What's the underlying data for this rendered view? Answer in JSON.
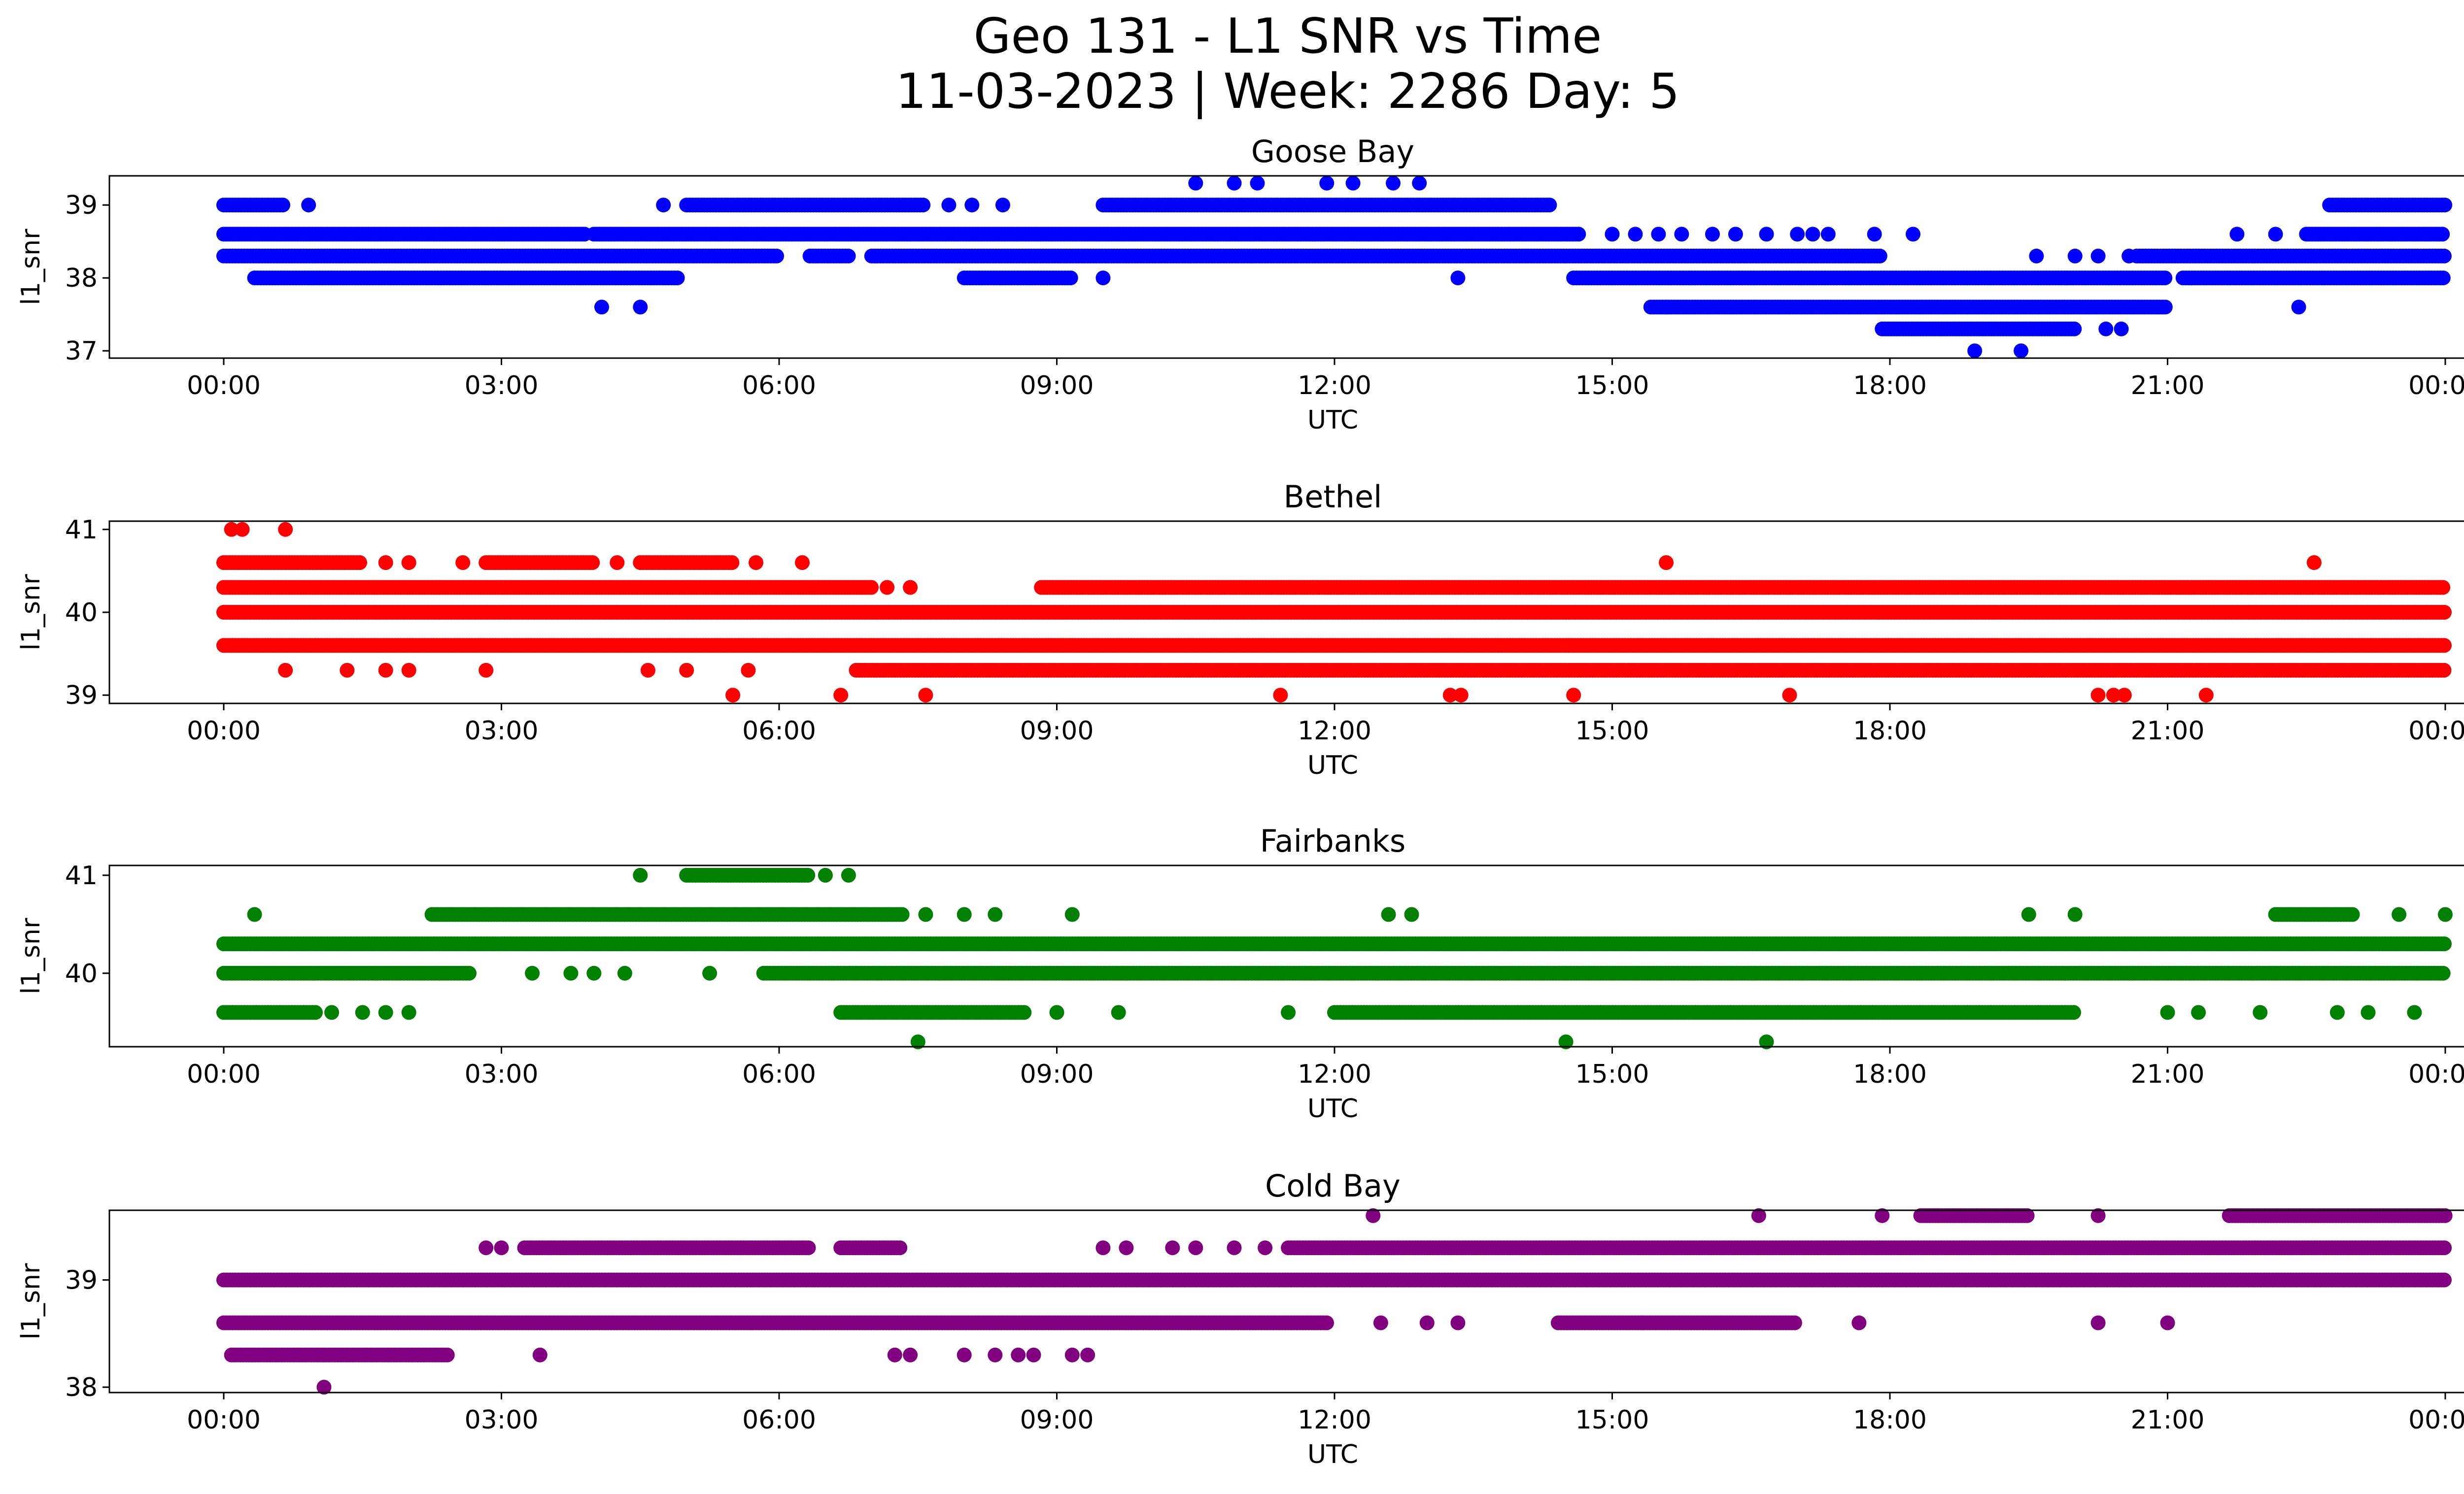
{
  "figure": {
    "title_line1": "Geo 131 - L1 SNR vs Time",
    "title_line2": "11-03-2023 | Week: 2286 Day: 5"
  },
  "chart_data": [
    {
      "type": "scatter",
      "title": "Goose Bay",
      "xlabel": "UTC",
      "ylabel": "l1_snr",
      "color": "#0000ff",
      "xlim": [
        "2023-11-03 00:00",
        "2023-11-04 00:00"
      ],
      "xticks": [
        "00:00",
        "03:00",
        "06:00",
        "09:00",
        "12:00",
        "15:00",
        "18:00",
        "21:00",
        "00:00"
      ],
      "ylim": [
        36.9,
        39.4
      ],
      "yticks": [
        37,
        38,
        39
      ],
      "series": [
        {
          "y": 39.3,
          "ranges": [],
          "points": [
            "10:30",
            "10:55",
            "11:10",
            "11:55",
            "12:12",
            "12:38",
            "12:55"
          ]
        },
        {
          "y": 39.0,
          "ranges": [
            [
              "00:00",
              "00:40"
            ],
            [
              "05:00",
              "07:35"
            ],
            [
              "09:30",
              "14:20"
            ],
            [
              "22:45",
              "24:00"
            ]
          ],
          "points": [
            "00:55",
            "04:45",
            "07:50",
            "08:05",
            "08:25"
          ]
        },
        {
          "y": 38.6,
          "ranges": [
            [
              "00:00",
              "03:55"
            ],
            [
              "04:00",
              "14:40"
            ],
            [
              "22:30",
              "24:00"
            ]
          ],
          "points": [
            "15:00",
            "15:15",
            "15:30",
            "15:45",
            "16:05",
            "16:20",
            "16:40",
            "17:00",
            "17:10",
            "17:20",
            "17:50",
            "18:15",
            "21:45",
            "22:10"
          ]
        },
        {
          "y": 38.3,
          "ranges": [
            [
              "00:00",
              "06:00"
            ],
            [
              "06:20",
              "06:45"
            ],
            [
              "07:00",
              "17:55"
            ],
            [
              "20:40",
              "24:00"
            ]
          ],
          "points": [
            "19:35",
            "20:00",
            "20:15",
            "20:35"
          ]
        },
        {
          "y": 38.0,
          "ranges": [
            [
              "00:20",
              "04:55"
            ],
            [
              "08:00",
              "09:10"
            ],
            [
              "14:35",
              "21:00"
            ],
            [
              "21:10",
              "24:00"
            ]
          ],
          "points": [
            "09:30",
            "13:20"
          ]
        },
        {
          "y": 37.6,
          "ranges": [
            [
              "15:25",
              "21:00"
            ]
          ],
          "points": [
            "04:05",
            "04:30",
            "15:35",
            "22:25"
          ]
        },
        {
          "y": 37.3,
          "ranges": [
            [
              "17:55",
              "20:00"
            ]
          ],
          "points": [
            "20:20",
            "20:30"
          ]
        },
        {
          "y": 37.0,
          "ranges": [],
          "points": [
            "18:55",
            "19:25"
          ]
        }
      ]
    },
    {
      "type": "scatter",
      "title": "Bethel",
      "xlabel": "UTC",
      "ylabel": "l1_snr",
      "color": "#ff0000",
      "xlim": [
        "2023-11-03 00:00",
        "2023-11-04 00:00"
      ],
      "xticks": [
        "00:00",
        "03:00",
        "06:00",
        "09:00",
        "12:00",
        "15:00",
        "18:00",
        "21:00",
        "00:00"
      ],
      "ylim": [
        38.9,
        41.1
      ],
      "yticks": [
        39,
        40,
        41
      ],
      "series": [
        {
          "y": 41.0,
          "ranges": [],
          "points": [
            "00:05",
            "00:12",
            "00:40"
          ]
        },
        {
          "y": 40.6,
          "ranges": [
            [
              "00:00",
              "01:30"
            ],
            [
              "02:50",
              "04:00"
            ],
            [
              "04:30",
              "05:30"
            ]
          ],
          "points": [
            "01:45",
            "02:00",
            "02:35",
            "04:15",
            "05:45",
            "06:15",
            "15:35",
            "22:35"
          ]
        },
        {
          "y": 40.3,
          "ranges": [
            [
              "00:00",
              "07:00"
            ],
            [
              "08:50",
              "24:00"
            ]
          ],
          "points": [
            "07:10",
            "07:25"
          ]
        },
        {
          "y": 40.0,
          "ranges": [
            [
              "00:00",
              "24:00"
            ]
          ],
          "points": []
        },
        {
          "y": 39.6,
          "ranges": [
            [
              "00:00",
              "24:00"
            ]
          ],
          "points": []
        },
        {
          "y": 39.3,
          "ranges": [
            [
              "06:50",
              "24:00"
            ]
          ],
          "points": [
            "00:40",
            "01:20",
            "01:45",
            "02:00",
            "02:50",
            "04:35",
            "05:00",
            "05:40"
          ]
        },
        {
          "y": 39.0,
          "ranges": [],
          "points": [
            "05:30",
            "06:40",
            "07:35",
            "11:25",
            "13:15",
            "13:22",
            "14:35",
            "16:55",
            "20:15",
            "20:25",
            "20:32",
            "21:25"
          ]
        }
      ]
    },
    {
      "type": "scatter",
      "title": "Fairbanks",
      "xlabel": "UTC",
      "ylabel": "l1_snr",
      "color": "#008000",
      "xlim": [
        "2023-11-03 00:00",
        "2023-11-04 00:00"
      ],
      "xticks": [
        "00:00",
        "03:00",
        "06:00",
        "09:00",
        "12:00",
        "15:00",
        "18:00",
        "21:00",
        "00:00"
      ],
      "ylim": [
        39.25,
        41.1
      ],
      "yticks": [
        40,
        41
      ],
      "series": [
        {
          "y": 41.0,
          "ranges": [
            [
              "05:00",
              "06:20"
            ]
          ],
          "points": [
            "04:30",
            "06:30",
            "06:45"
          ]
        },
        {
          "y": 40.6,
          "ranges": [
            [
              "02:15",
              "07:20"
            ],
            [
              "22:10",
              "23:00"
            ]
          ],
          "points": [
            "00:20",
            "07:35",
            "08:00",
            "08:20",
            "09:10",
            "12:35",
            "12:50",
            "19:30",
            "20:00",
            "23:30",
            "24:00"
          ]
        },
        {
          "y": 40.3,
          "ranges": [
            [
              "00:00",
              "24:00"
            ]
          ],
          "points": []
        },
        {
          "y": 40.0,
          "ranges": [
            [
              "00:00",
              "02:40"
            ],
            [
              "05:50",
              "24:00"
            ]
          ],
          "points": [
            "03:20",
            "03:45",
            "04:00",
            "04:20",
            "05:15"
          ]
        },
        {
          "y": 39.6,
          "ranges": [
            [
              "00:00",
              "01:00"
            ],
            [
              "06:40",
              "08:40"
            ],
            [
              "12:00",
              "20:00"
            ]
          ],
          "points": [
            "01:10",
            "01:30",
            "01:45",
            "02:00",
            "09:00",
            "09:40",
            "11:30",
            "21:00",
            "21:20",
            "22:00",
            "22:50",
            "23:10",
            "23:40"
          ]
        },
        {
          "y": 39.3,
          "ranges": [],
          "points": [
            "07:30",
            "14:30",
            "16:40"
          ]
        }
      ]
    },
    {
      "type": "scatter",
      "title": "Cold Bay",
      "xlabel": "UTC",
      "ylabel": "l1_snr",
      "color": "#800080",
      "xlim": [
        "2023-11-03 00:00",
        "2023-11-04 00:00"
      ],
      "xticks": [
        "00:00",
        "03:00",
        "06:00",
        "09:00",
        "12:00",
        "15:00",
        "18:00",
        "21:00",
        "00:00"
      ],
      "ylim": [
        37.95,
        39.65
      ],
      "yticks": [
        38,
        39
      ],
      "series": [
        {
          "y": 39.6,
          "ranges": [
            [
              "18:20",
              "19:30"
            ],
            [
              "21:40",
              "24:00"
            ]
          ],
          "points": [
            "12:25",
            "16:35",
            "17:55",
            "20:15"
          ]
        },
        {
          "y": 39.3,
          "ranges": [
            [
              "03:15",
              "06:20"
            ],
            [
              "06:40",
              "07:20"
            ],
            [
              "11:30",
              "24:00"
            ]
          ],
          "points": [
            "02:50",
            "03:00",
            "09:30",
            "09:45",
            "10:15",
            "10:30",
            "10:55",
            "11:15"
          ]
        },
        {
          "y": 39.0,
          "ranges": [
            [
              "00:00",
              "24:00"
            ]
          ],
          "points": []
        },
        {
          "y": 38.6,
          "ranges": [
            [
              "00:00",
              "11:55"
            ],
            [
              "14:25",
              "17:00"
            ]
          ],
          "points": [
            "12:30",
            "13:00",
            "13:20",
            "15:20",
            "17:40",
            "20:15",
            "21:00"
          ]
        },
        {
          "y": 38.3,
          "ranges": [
            [
              "00:05",
              "02:25"
            ]
          ],
          "points": [
            "03:25",
            "07:15",
            "07:25",
            "08:00",
            "08:20",
            "08:35",
            "08:45",
            "09:10",
            "09:20"
          ]
        },
        {
          "y": 38.0,
          "ranges": [],
          "points": [
            "01:05"
          ]
        }
      ]
    }
  ]
}
